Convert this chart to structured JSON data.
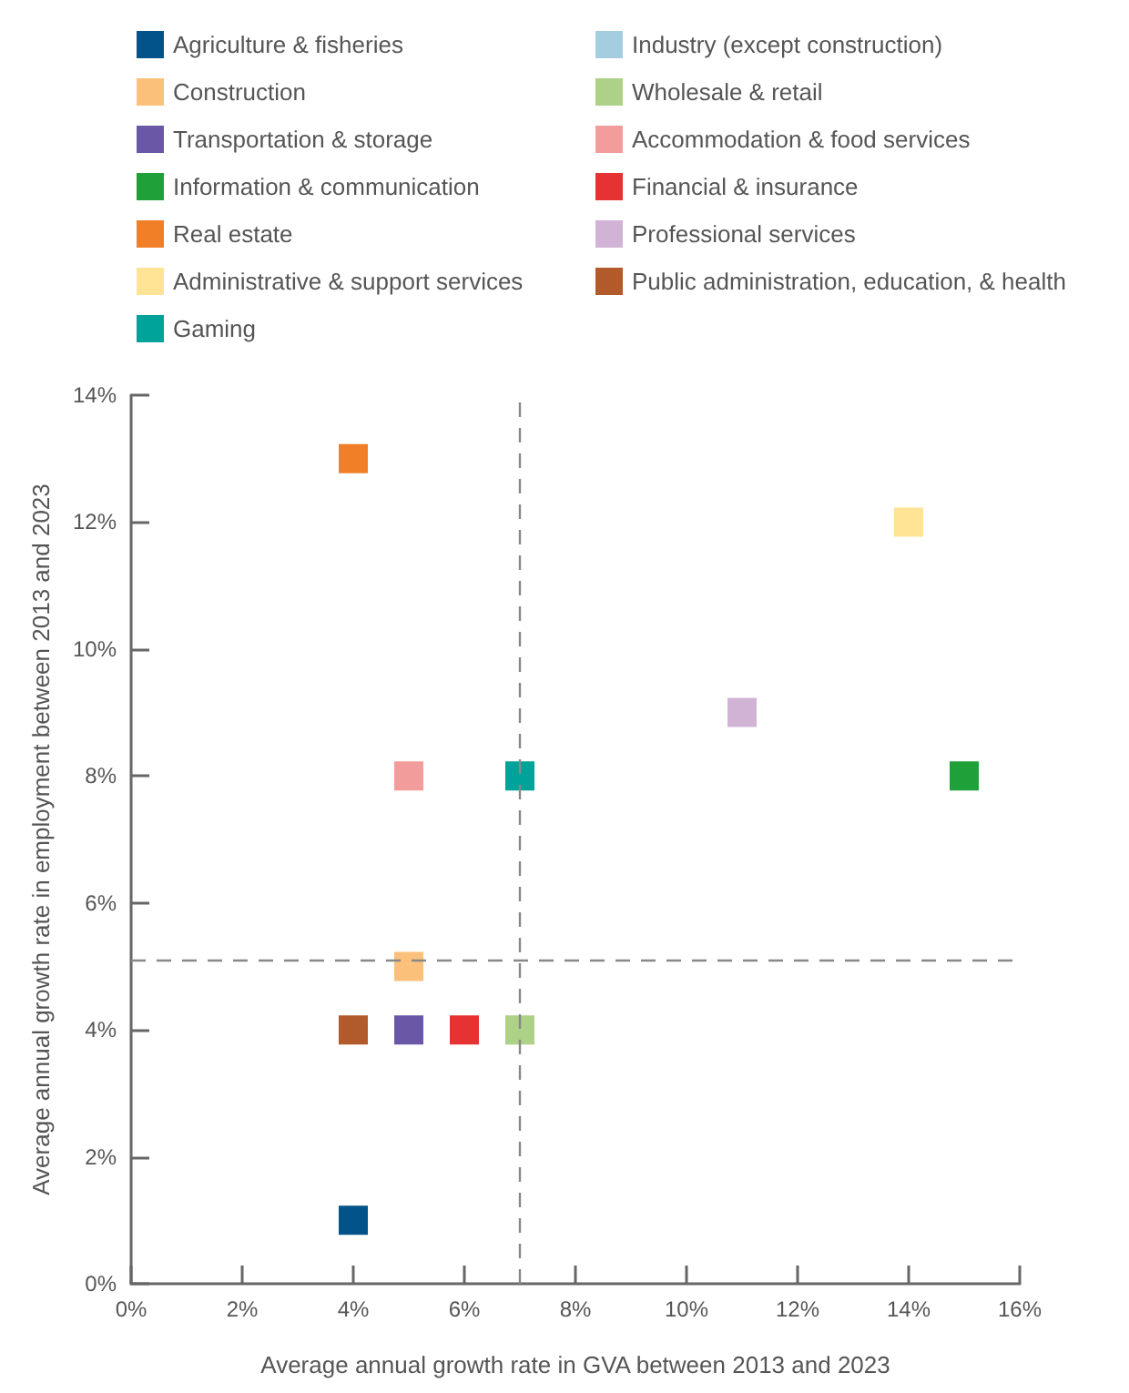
{
  "chart_data": {
    "type": "scatter",
    "xlabel": "Average annual growth rate in GVA between 2013 and 2023",
    "ylabel": "Average annual growth rate in employment between 2013 and 2023",
    "xlim": [
      0,
      16
    ],
    "xticks": [
      {
        "value": 0,
        "label": "0%"
      },
      {
        "value": 2,
        "label": "2%"
      },
      {
        "value": 4,
        "label": "4%"
      },
      {
        "value": 6,
        "label": "6%"
      },
      {
        "value": 8,
        "label": "8%"
      },
      {
        "value": 10,
        "label": "10%"
      },
      {
        "value": 12,
        "label": "12%"
      },
      {
        "value": 14,
        "label": "14%"
      },
      {
        "value": 16,
        "label": "16%"
      }
    ],
    "ylim": [
      0,
      14
    ],
    "yticks": [
      {
        "value": 0,
        "label": "0%"
      },
      {
        "value": 2,
        "label": "2%"
      },
      {
        "value": 4,
        "label": "4%"
      },
      {
        "value": 6,
        "label": "6%"
      },
      {
        "value": 8,
        "label": "8%"
      },
      {
        "value": 10,
        "label": "10%"
      },
      {
        "value": 12,
        "label": "12%"
      },
      {
        "value": 14,
        "label": "14%"
      }
    ],
    "grid": false,
    "legend": "top",
    "marker": "square",
    "ref_lines": [
      {
        "axis": "x",
        "value": 7,
        "color": "#888888",
        "line_style": "dashed"
      },
      {
        "axis": "y",
        "value": 5.1,
        "color": "#888888",
        "line_style": "dashed"
      }
    ],
    "series": [
      {
        "name": "Agriculture & fisheries",
        "color": "#01538a",
        "x": [
          4
        ],
        "values": [
          1
        ]
      },
      {
        "name": "Industry (except construction)",
        "color": "#a5cde0",
        "x": [
          null
        ],
        "values": [
          null
        ]
      },
      {
        "name": "Construction",
        "color": "#fbc17a",
        "x": [
          5
        ],
        "values": [
          5
        ]
      },
      {
        "name": "Wholesale & retail",
        "color": "#acd187",
        "x": [
          7
        ],
        "values": [
          4
        ]
      },
      {
        "name": "Transportation & storage",
        "color": "#6a58a6",
        "x": [
          5
        ],
        "values": [
          4
        ]
      },
      {
        "name": "Accommodation & food services",
        "color": "#f39c9c",
        "x": [
          5
        ],
        "values": [
          8
        ]
      },
      {
        "name": "Information & communication",
        "color": "#20a038",
        "x": [
          15
        ],
        "values": [
          8
        ]
      },
      {
        "name": "Financial & insurance",
        "color": "#e63232",
        "x": [
          6
        ],
        "values": [
          4
        ]
      },
      {
        "name": "Real estate",
        "color": "#f07f27",
        "x": [
          4
        ],
        "values": [
          13
        ]
      },
      {
        "name": "Professional services",
        "color": "#d1b3d6",
        "x": [
          11
        ],
        "values": [
          9
        ]
      },
      {
        "name": "Administrative & support services",
        "color": "#fee494",
        "x": [
          14
        ],
        "values": [
          12
        ]
      },
      {
        "name": "Public administration, education, & health",
        "color": "#b35a2a",
        "x": [
          4
        ],
        "values": [
          4
        ]
      },
      {
        "name": "Gaming",
        "color": "#00a39a",
        "x": [
          7
        ],
        "values": [
          8
        ]
      }
    ]
  }
}
